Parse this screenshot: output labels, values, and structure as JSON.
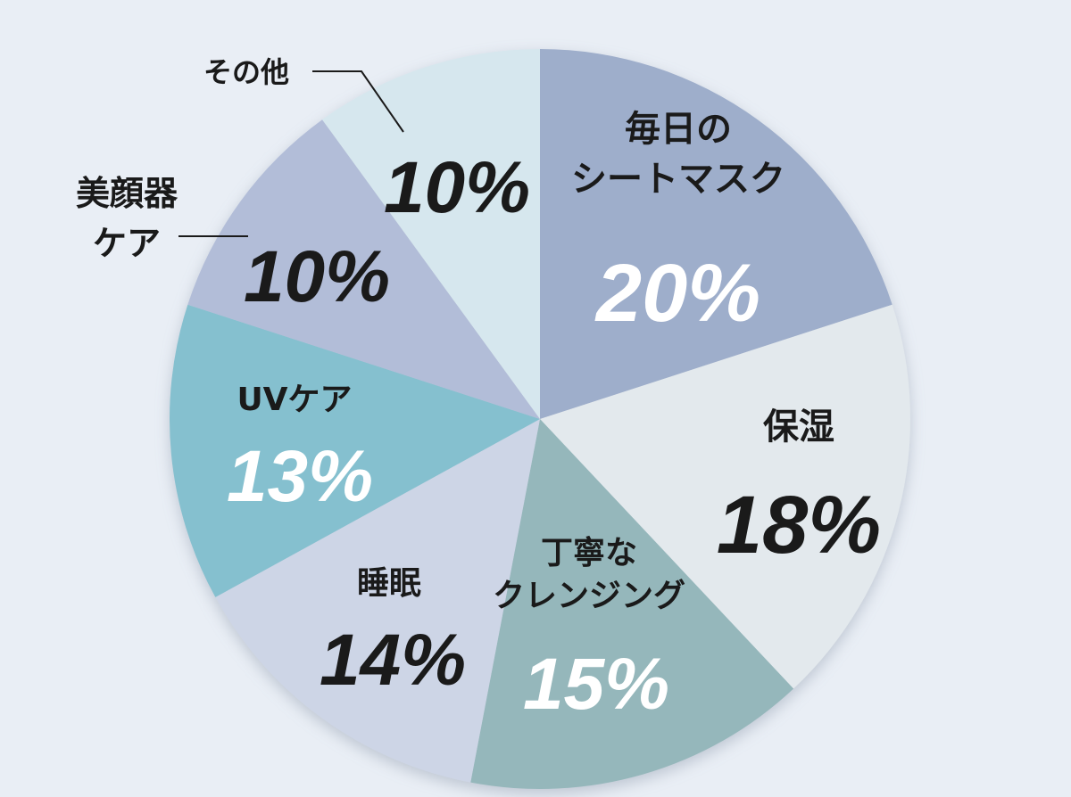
{
  "chart_data": {
    "type": "pie",
    "start_angle_deg": 0,
    "direction": "clockwise",
    "slices": [
      {
        "label": [
          "毎日の",
          "シートマスク"
        ],
        "value": 20,
        "value_label": "20%",
        "color": "#9eaecb",
        "value_color": "#ffffff"
      },
      {
        "label": [
          "保湿"
        ],
        "value": 18,
        "value_label": "18%",
        "color": "#e3e9ed",
        "value_color": "#1a1a1a"
      },
      {
        "label": [
          "丁寧な",
          "クレンジング"
        ],
        "value": 15,
        "value_label": "15%",
        "color": "#95b7bb",
        "value_color": "#ffffff"
      },
      {
        "label": [
          "睡眠"
        ],
        "value": 14,
        "value_label": "14%",
        "color": "#cdd5e6",
        "value_color": "#1a1a1a"
      },
      {
        "label": [
          "UVケア"
        ],
        "value": 13,
        "value_label": "13%",
        "color": "#85c0cf",
        "value_color": "#ffffff"
      },
      {
        "label": [
          "美顔器",
          "ケア"
        ],
        "value": 10,
        "value_label": "10%",
        "color": "#b2bdd8",
        "value_color": "#1a1a1a"
      },
      {
        "label": [
          "その他"
        ],
        "value": 10,
        "value_label": "10%",
        "color": "#d6e7ee",
        "value_color": "#1a1a1a"
      }
    ]
  }
}
